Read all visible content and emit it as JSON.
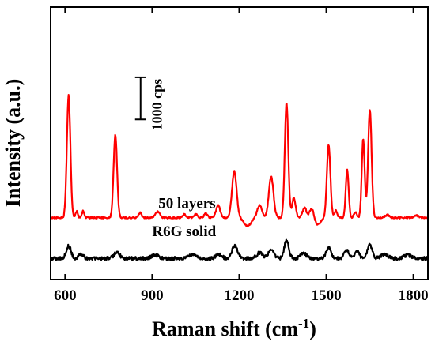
{
  "chart_data": {
    "type": "line",
    "xlabel": "Raman shift (cm",
    "xlabel_sup": "-1",
    "xlabel_close": ")",
    "ylabel": "Intensity (a.u.)",
    "xlim": [
      550,
      1850
    ],
    "ylim": [
      -0.5,
      9.2
    ],
    "x_ticks": [
      600,
      900,
      1200,
      1500,
      1800
    ],
    "x_tick_labels": [
      "600",
      "900",
      "1200",
      "1500",
      "1800"
    ],
    "y_ticks_shown": false,
    "grid": false,
    "scale_bar": {
      "label": "1000 cps",
      "from": 5.2,
      "to": 6.7
    },
    "annotations": [
      {
        "id": "red",
        "text": "50 layers"
      },
      {
        "id": "black",
        "text": "R6G solid"
      }
    ],
    "series": [
      {
        "id": "red",
        "color": "#ff0000",
        "baseline": 1.7,
        "noise": 0.03,
        "peaks": [
          [
            612,
            4.35,
            6
          ],
          [
            640,
            0.22,
            4
          ],
          [
            662,
            0.25,
            4
          ],
          [
            773,
            2.95,
            6
          ],
          [
            858,
            0.18,
            5
          ],
          [
            918,
            0.22,
            8
          ],
          [
            1010,
            0.12,
            6
          ],
          [
            1050,
            0.12,
            6
          ],
          [
            1085,
            0.15,
            6
          ],
          [
            1127,
            0.45,
            7
          ],
          [
            1183,
            1.65,
            8
          ],
          [
            1270,
            0.45,
            8
          ],
          [
            1310,
            1.45,
            8
          ],
          [
            1363,
            4.1,
            6
          ],
          [
            1388,
            0.7,
            6
          ],
          [
            1425,
            0.35,
            7
          ],
          [
            1450,
            0.35,
            7
          ],
          [
            1508,
            2.6,
            6
          ],
          [
            1533,
            0.25,
            5
          ],
          [
            1572,
            1.7,
            5
          ],
          [
            1600,
            0.2,
            5
          ],
          [
            1627,
            2.8,
            5
          ],
          [
            1650,
            3.85,
            6
          ],
          [
            1710,
            0.1,
            8
          ],
          [
            1810,
            0.08,
            8
          ]
        ],
        "dips": [
          [
            1228,
            0.3,
            12
          ],
          [
            1470,
            0.25,
            10
          ]
        ]
      },
      {
        "id": "black",
        "color": "#000000",
        "baseline": 0.25,
        "noise": 0.06,
        "peaks": [
          [
            612,
            0.45,
            8
          ],
          [
            655,
            0.15,
            8
          ],
          [
            778,
            0.2,
            10
          ],
          [
            910,
            0.12,
            12
          ],
          [
            1040,
            0.15,
            12
          ],
          [
            1130,
            0.15,
            10
          ],
          [
            1185,
            0.45,
            10
          ],
          [
            1270,
            0.2,
            10
          ],
          [
            1310,
            0.3,
            10
          ],
          [
            1363,
            0.65,
            8
          ],
          [
            1420,
            0.2,
            10
          ],
          [
            1508,
            0.4,
            8
          ],
          [
            1570,
            0.3,
            8
          ],
          [
            1605,
            0.25,
            8
          ],
          [
            1650,
            0.5,
            8
          ],
          [
            1700,
            0.15,
            12
          ],
          [
            1780,
            0.12,
            12
          ]
        ],
        "dips": []
      }
    ]
  }
}
